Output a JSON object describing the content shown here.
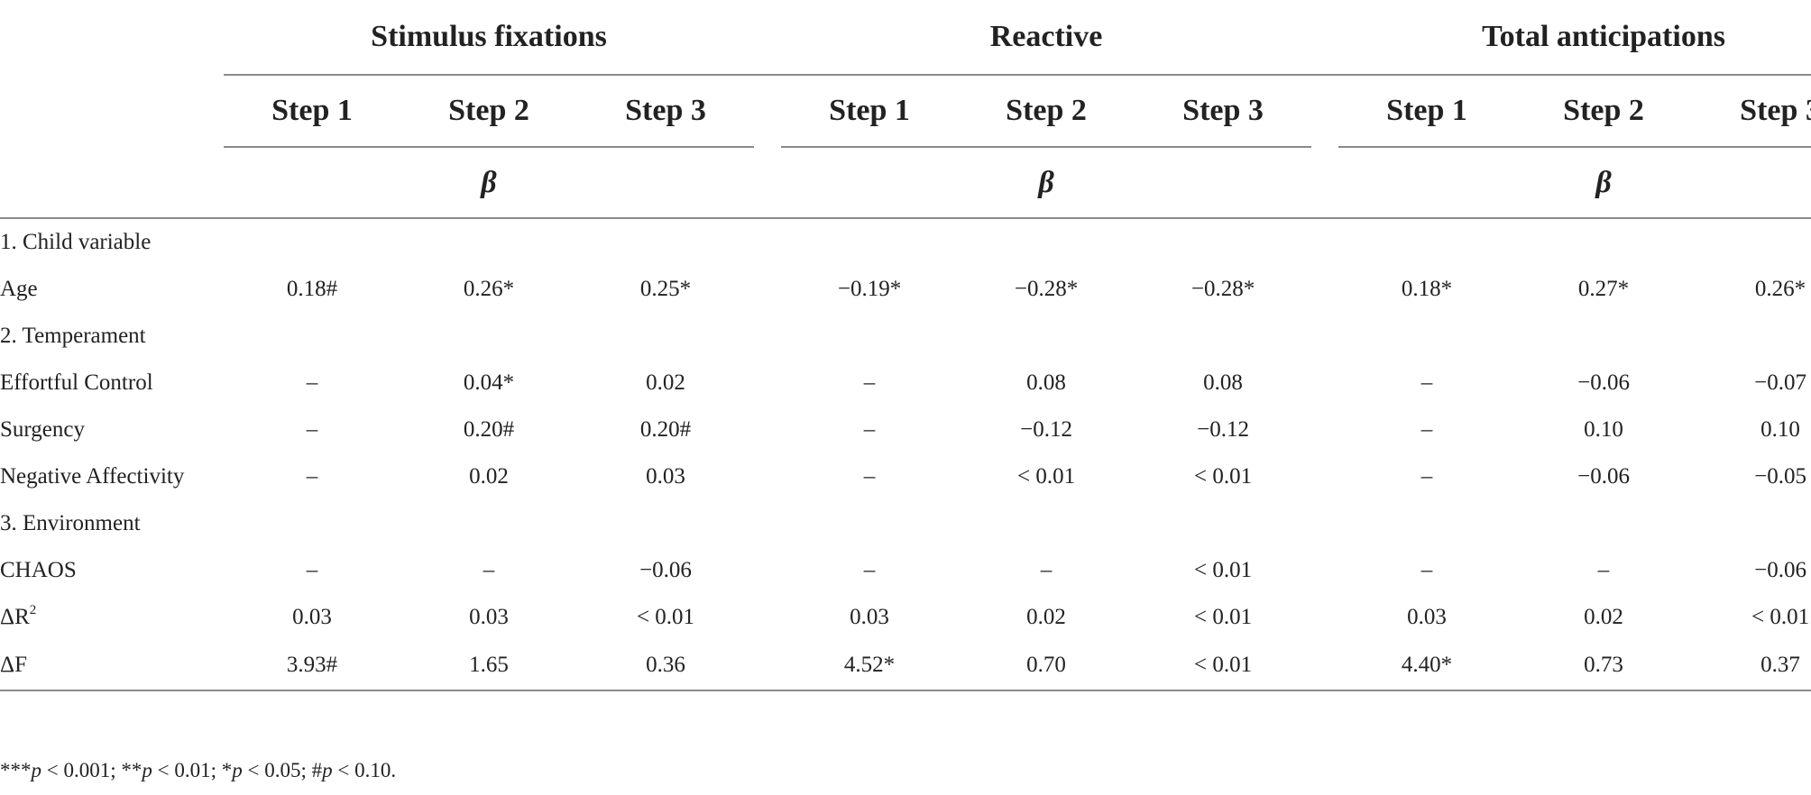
{
  "groups": [
    "Stimulus fixations",
    "Reactive",
    "Total anticipations"
  ],
  "steps": [
    "Step 1",
    "Step 2",
    "Step 3"
  ],
  "beta_symbol": "β",
  "rows": [
    {
      "label": "1. Child variable",
      "section": true,
      "values": [
        "",
        "",
        "",
        "",
        "",
        "",
        "",
        "",
        ""
      ]
    },
    {
      "label": "Age",
      "section": false,
      "values": [
        "0.18#",
        "0.26*",
        "0.25*",
        "−0.19*",
        "−0.28*",
        "−0.28*",
        "0.18*",
        "0.27*",
        "0.26*"
      ]
    },
    {
      "label": "2. Temperament",
      "section": true,
      "values": [
        "",
        "",
        "",
        "",
        "",
        "",
        "",
        "",
        ""
      ]
    },
    {
      "label": "Effortful Control",
      "section": false,
      "values": [
        "–",
        "0.04*",
        "0.02",
        "–",
        "0.08",
        "0.08",
        "–",
        "−0.06",
        "−0.07"
      ]
    },
    {
      "label": "Surgency",
      "section": false,
      "values": [
        "–",
        "0.20#",
        "0.20#",
        "–",
        "−0.12",
        "−0.12",
        "–",
        "0.10",
        "0.10"
      ]
    },
    {
      "label": "Negative Affectivity",
      "section": false,
      "values": [
        "–",
        "0.02",
        "0.03",
        "–",
        "< 0.01",
        "< 0.01",
        "–",
        "−0.06",
        "−0.05"
      ]
    },
    {
      "label": "3. Environment",
      "section": true,
      "values": [
        "",
        "",
        "",
        "",
        "",
        "",
        "",
        "",
        ""
      ]
    },
    {
      "label": "CHAOS",
      "section": false,
      "values": [
        "–",
        "–",
        "−0.06",
        "–",
        "–",
        "< 0.01",
        "–",
        "–",
        "−0.06"
      ]
    },
    {
      "label": "ΔR",
      "label_sup": "2",
      "section": false,
      "values": [
        "0.03",
        "0.03",
        "< 0.01",
        "0.03",
        "0.02",
        "< 0.01",
        "0.03",
        "0.02",
        "< 0.01"
      ]
    },
    {
      "label": "ΔF",
      "section": false,
      "values": [
        "3.93#",
        "1.65",
        "0.36",
        "4.52*",
        "0.70",
        "< 0.01",
        "4.40*",
        "0.73",
        "0.37"
      ]
    }
  ],
  "footnote": {
    "parts": [
      {
        "text": "***",
        "italic": false
      },
      {
        "text": "p",
        "italic": true
      },
      {
        "text": " < 0.001; **",
        "italic": false
      },
      {
        "text": "p",
        "italic": true
      },
      {
        "text": " < 0.01; *",
        "italic": false
      },
      {
        "text": "p",
        "italic": true
      },
      {
        "text": " < 0.05; #",
        "italic": false
      },
      {
        "text": "p",
        "italic": true
      },
      {
        "text": " < 0.10.",
        "italic": false
      }
    ]
  }
}
